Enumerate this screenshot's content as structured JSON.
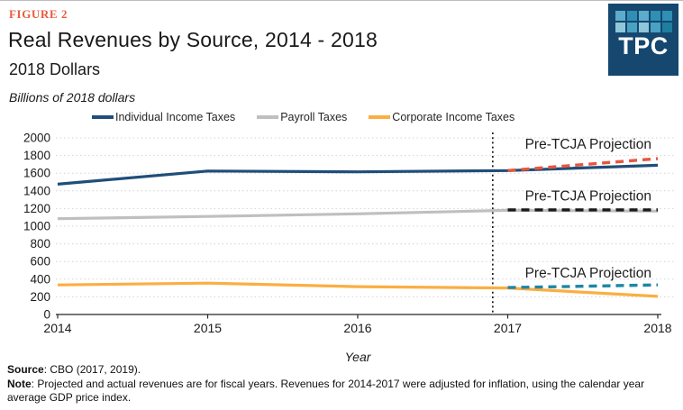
{
  "figure_label": "FIGURE 2",
  "title": "Real Revenues by Source, 2014 - 2018",
  "subtitle": "2018 Dollars",
  "units_note": "Billions of 2018 dollars",
  "logo": {
    "text": "TPC",
    "bg_color": "#15476F",
    "squares": [
      [
        "#5CACCB",
        "#2F8FB5",
        "#5CACCB",
        "#2F8FB5",
        "#2F8FB5"
      ],
      [
        "#8FC6DA",
        "#49A2C2",
        "#8FC6DA",
        "#49A2C2",
        "#1F7D9F"
      ]
    ]
  },
  "legend": [
    {
      "label": "Individual Income Taxes",
      "color": "#1F4E79"
    },
    {
      "label": "Payroll Taxes",
      "color": "#BFBFBF"
    },
    {
      "label": "Corporate Income Taxes",
      "color": "#FBAE42"
    }
  ],
  "chart_data": {
    "type": "line",
    "title": "Real Revenues by Source, 2014 - 2018",
    "x": [
      2014,
      2015,
      2016,
      2017,
      2018
    ],
    "xlabel": "Year",
    "ylabel": "Billions of 2018 dollars",
    "ylim": [
      0,
      2000
    ],
    "ytick_step": 200,
    "grid": "dotted horizontal",
    "legend_position": "top",
    "projection_divider_x": 2016.9,
    "series": [
      {
        "name": "Individual Income Taxes",
        "color": "#1F4E79",
        "dash": false,
        "x": [
          2014,
          2015,
          2016,
          2017,
          2018
        ],
        "values": [
          1475,
          1625,
          1615,
          1630,
          1690
        ]
      },
      {
        "name": "Payroll Taxes",
        "color": "#BFBFBF",
        "dash": false,
        "x": [
          2014,
          2015,
          2016,
          2017,
          2018
        ],
        "values": [
          1085,
          1110,
          1140,
          1180,
          1170
        ]
      },
      {
        "name": "Corporate Income Taxes",
        "color": "#FBAE42",
        "dash": false,
        "x": [
          2014,
          2015,
          2016,
          2017,
          2018
        ],
        "values": [
          335,
          355,
          315,
          300,
          205
        ]
      },
      {
        "name": "Individual Income Taxes (Pre-TCJA Projection)",
        "color": "#E8563C",
        "dash": true,
        "x": [
          2017,
          2018
        ],
        "values": [
          1630,
          1765
        ],
        "annotation": "Pre-TCJA Projection",
        "annotation_y": 1880
      },
      {
        "name": "Payroll Taxes (Pre-TCJA Projection)",
        "color": "#1A1A1A",
        "dash": true,
        "x": [
          2017,
          2018
        ],
        "values": [
          1185,
          1185
        ],
        "annotation": "Pre-TCJA Projection",
        "annotation_y": 1290
      },
      {
        "name": "Corporate Income Taxes (Pre-TCJA Projection)",
        "color": "#1F86A5",
        "dash": true,
        "x": [
          2017,
          2018
        ],
        "values": [
          305,
          335
        ],
        "annotation": "Pre-TCJA Projection",
        "annotation_y": 420
      }
    ]
  },
  "footer": {
    "source_label": "Source",
    "source_text": ": CBO (2017, 2019).",
    "note_label": "Note",
    "note_text": ": Projected and actual revenues are for fiscal years. Revenues for 2014-2017 were adjusted for inflation, using the calendar year average GDP price index."
  }
}
